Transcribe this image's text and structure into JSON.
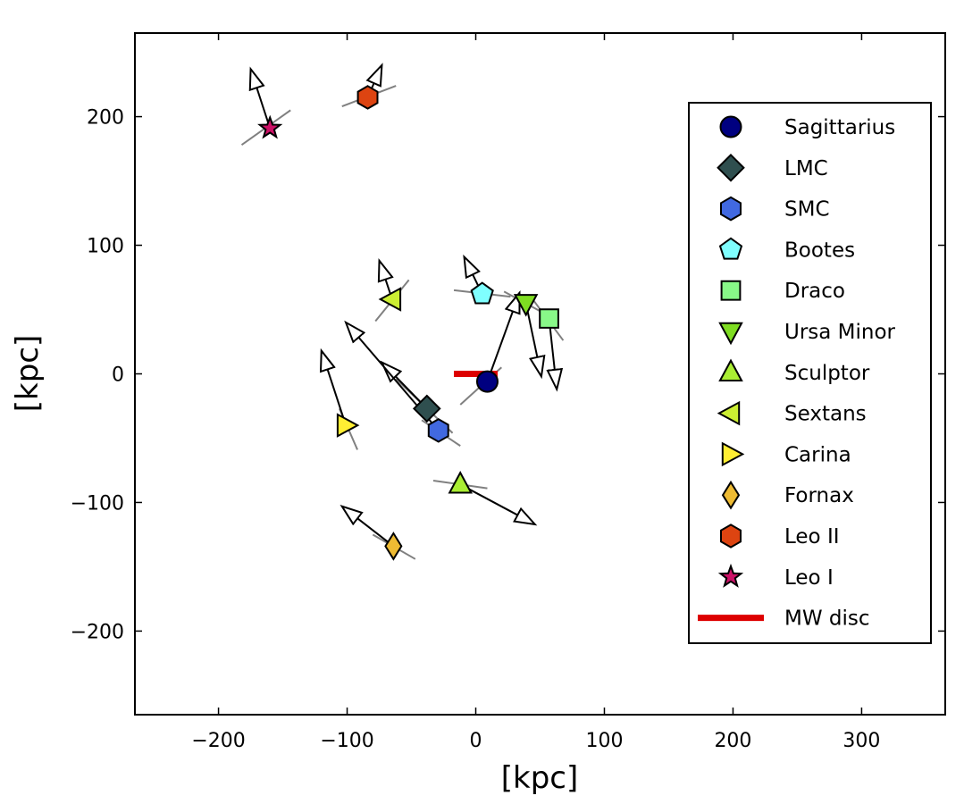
{
  "chart_data": {
    "type": "scatter",
    "xlabel": "[kpc]",
    "ylabel": "[kpc]",
    "xlim": [
      -265,
      365
    ],
    "ylim": [
      -265,
      265
    ],
    "xticks": [
      -200,
      -100,
      0,
      100,
      200,
      300
    ],
    "yticks": [
      -200,
      -100,
      0,
      100,
      200
    ],
    "xtick_labels": [
      "−200",
      "−100",
      "0",
      "100",
      "200",
      "300"
    ],
    "ytick_labels": [
      "−200",
      "−100",
      "0",
      "100",
      "200"
    ],
    "legend_position": "right",
    "disc": {
      "label": "MW disc",
      "color": "#dd0000",
      "x": [
        -17,
        17
      ],
      "y": 0
    },
    "series": [
      {
        "name": "Sagittarius",
        "marker": "circle",
        "color": "#000080",
        "x": 9,
        "y": -6,
        "orbit": [
          [
            -12,
            -24
          ],
          [
            20,
            5
          ]
        ],
        "velocity": [
          34,
          63
        ]
      },
      {
        "name": "LMC",
        "marker": "diamond",
        "color": "#2f4f4f",
        "x": -38,
        "y": -27,
        "orbit": [
          [
            -62,
            -4
          ],
          [
            -18,
            -46
          ]
        ],
        "velocity": [
          -73,
          9
        ]
      },
      {
        "name": "SMC",
        "marker": "hexagon",
        "color": "#4169e1",
        "x": -29,
        "y": -44,
        "orbit": [
          [
            -42,
            -36
          ],
          [
            -12,
            -56
          ]
        ],
        "velocity": [
          -101,
          40
        ]
      },
      {
        "name": "Bootes",
        "marker": "pentagon",
        "color": "#7fffff",
        "x": 5,
        "y": 62,
        "orbit": [
          [
            -17,
            65
          ],
          [
            27,
            60
          ]
        ],
        "velocity": [
          -9,
          91
        ]
      },
      {
        "name": "Draco",
        "marker": "square",
        "color": "#88f888",
        "x": 57,
        "y": 43,
        "orbit": [
          [
            45,
            57
          ],
          [
            68,
            26
          ]
        ],
        "velocity": [
          63,
          -12
        ]
      },
      {
        "name": "Ursa Minor",
        "marker": "triangle-down",
        "color": "#7fdd22",
        "x": 39,
        "y": 55,
        "orbit": [
          [
            22,
            64
          ],
          [
            57,
            45
          ]
        ],
        "velocity": [
          51,
          -2
        ]
      },
      {
        "name": "Sculptor",
        "marker": "triangle-up",
        "color": "#aaee33",
        "x": -12,
        "y": -86,
        "orbit": [
          [
            -33,
            -83
          ],
          [
            9,
            -89
          ]
        ],
        "velocity": [
          46,
          -117
        ]
      },
      {
        "name": "Sextans",
        "marker": "triangle-left",
        "color": "#ccee33",
        "x": -65,
        "y": 58,
        "orbit": [
          [
            -78,
            41
          ],
          [
            -52,
            73
          ]
        ],
        "velocity": [
          -75,
          88
        ]
      },
      {
        "name": "Carina",
        "marker": "triangle-right",
        "color": "#ffee33",
        "x": -101,
        "y": -40,
        "orbit": [
          [
            -106,
            -27
          ],
          [
            -92,
            -59
          ]
        ],
        "velocity": [
          -120,
          18
        ]
      },
      {
        "name": "Fornax",
        "marker": "thin-diamond",
        "color": "#eebb33",
        "x": -64,
        "y": -134,
        "orbit": [
          [
            -80,
            -125
          ],
          [
            -47,
            -144
          ]
        ],
        "velocity": [
          -104,
          -103
        ]
      },
      {
        "name": "Leo II",
        "marker": "hexagon",
        "color": "#dd4411",
        "x": -84,
        "y": 215,
        "orbit": [
          [
            -104,
            208
          ],
          [
            -62,
            224
          ]
        ],
        "velocity": [
          -73,
          240
        ]
      },
      {
        "name": "Leo I",
        "marker": "star",
        "color": "#cc1166",
        "x": -160,
        "y": 191,
        "orbit": [
          [
            -182,
            178
          ],
          [
            -144,
            205
          ]
        ],
        "velocity": [
          -175,
          237
        ]
      }
    ]
  }
}
